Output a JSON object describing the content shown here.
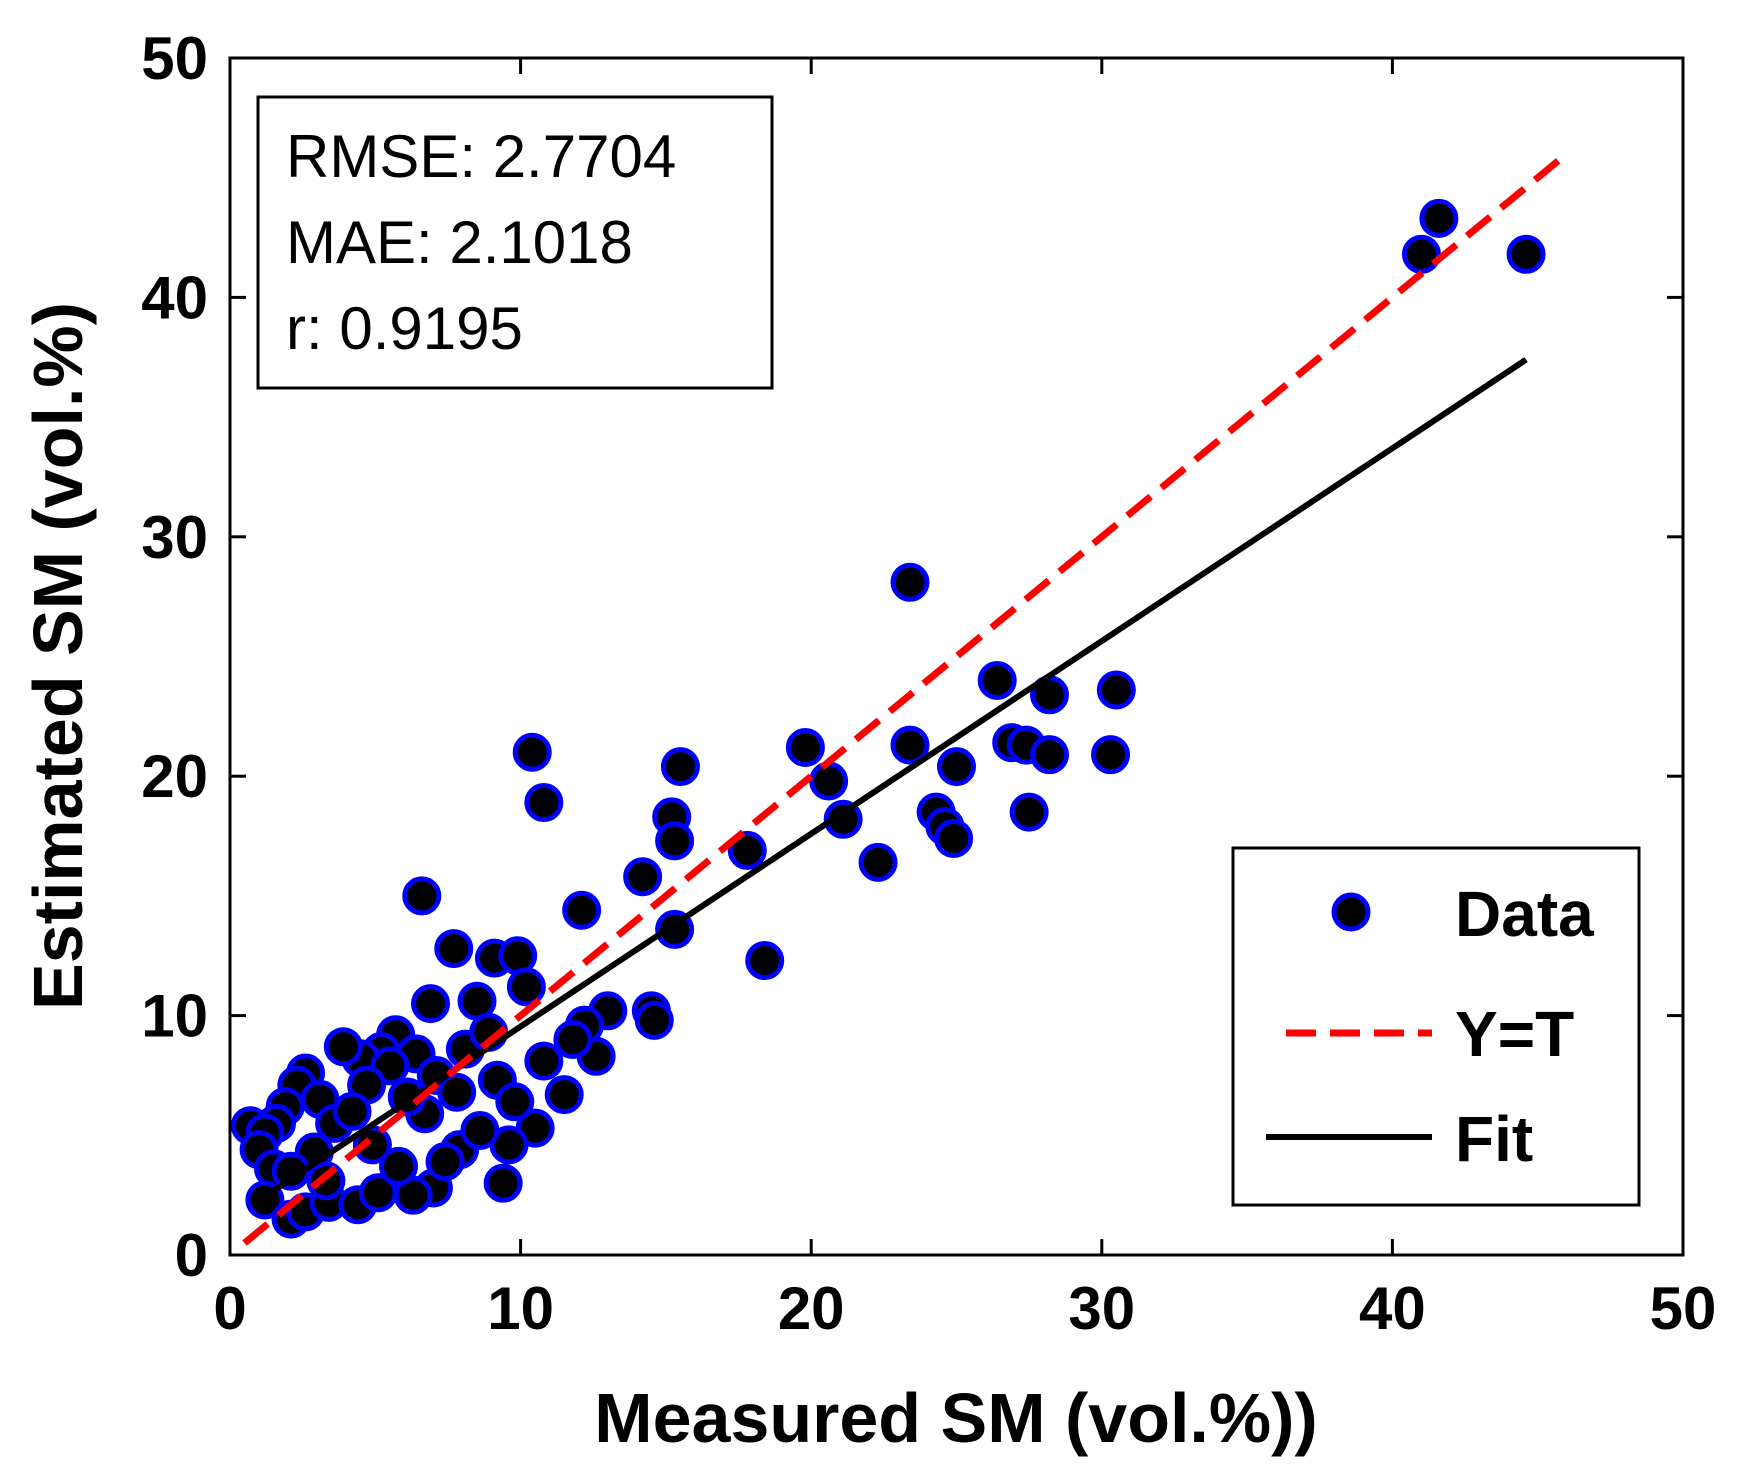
{
  "chart_data": {
    "type": "scatter",
    "xlabel": "Measured SM (vol.%))",
    "ylabel": "Estimated SM (vol.%)",
    "xlim": [
      0,
      50
    ],
    "ylim": [
      0,
      50
    ],
    "xticks": [
      0,
      10,
      20,
      30,
      40,
      50
    ],
    "yticks": [
      0,
      10,
      20,
      30,
      40,
      50
    ],
    "stats": {
      "rmse": "RMSE: 2.7704",
      "mae": "MAE: 2.1018",
      "r": "r: 0.9195"
    },
    "legend": {
      "position": "bottom-right",
      "entries": [
        "Data",
        "Y=T",
        "Fit"
      ]
    },
    "colors": {
      "marker_fill": "#000000",
      "marker_edge": "#0000ff",
      "yt_line": "#ff0000",
      "fit_line": "#000000"
    },
    "yt_line": {
      "x": [
        0.5,
        46
      ],
      "y": [
        0.5,
        46
      ]
    },
    "fit_line": {
      "x": [
        1,
        44.6
      ],
      "y": [
        2.3,
        37.4
      ]
    },
    "series": [
      {
        "name": "Data",
        "points": [
          [
            41.6,
            43.3
          ],
          [
            41.0,
            41.8
          ],
          [
            44.6,
            41.8
          ],
          [
            23.4,
            28.1
          ],
          [
            26.4,
            24.0
          ],
          [
            30.5,
            23.6
          ],
          [
            28.2,
            23.4
          ],
          [
            26.9,
            21.4
          ],
          [
            27.4,
            21.3
          ],
          [
            28.2,
            20.9
          ],
          [
            30.3,
            20.9
          ],
          [
            23.4,
            21.3
          ],
          [
            19.8,
            21.2
          ],
          [
            20.6,
            19.8
          ],
          [
            21.1,
            18.2
          ],
          [
            25.0,
            20.4
          ],
          [
            24.3,
            18.5
          ],
          [
            24.6,
            17.9
          ],
          [
            24.9,
            17.4
          ],
          [
            27.5,
            18.5
          ],
          [
            22.3,
            16.4
          ],
          [
            10.4,
            21.0
          ],
          [
            10.8,
            18.9
          ],
          [
            15.5,
            20.4
          ],
          [
            15.2,
            18.3
          ],
          [
            15.3,
            17.3
          ],
          [
            17.8,
            16.9
          ],
          [
            14.2,
            15.8
          ],
          [
            12.1,
            14.4
          ],
          [
            15.3,
            13.6
          ],
          [
            18.4,
            12.3
          ],
          [
            6.6,
            15.0
          ],
          [
            7.7,
            12.8
          ],
          [
            9.1,
            12.4
          ],
          [
            9.9,
            12.5
          ],
          [
            10.2,
            11.2
          ],
          [
            6.9,
            10.5
          ],
          [
            8.5,
            10.6
          ],
          [
            14.5,
            10.2
          ],
          [
            14.6,
            9.8
          ],
          [
            13.0,
            10.2
          ],
          [
            12.6,
            8.3
          ],
          [
            11.5,
            6.7
          ],
          [
            12.2,
            9.6
          ],
          [
            11.8,
            9.0
          ],
          [
            10.8,
            8.1
          ],
          [
            10.5,
            5.3
          ],
          [
            9.6,
            4.6
          ],
          [
            9.4,
            3.0
          ],
          [
            7.0,
            2.8
          ],
          [
            6.3,
            2.5
          ],
          [
            5.7,
            9.2
          ],
          [
            5.2,
            8.5
          ],
          [
            4.5,
            8.2
          ],
          [
            3.9,
            8.7
          ],
          [
            2.6,
            7.6
          ],
          [
            2.3,
            7.1
          ],
          [
            3.1,
            6.5
          ],
          [
            1.9,
            6.2
          ],
          [
            1.6,
            5.5
          ],
          [
            0.7,
            5.4
          ],
          [
            1.2,
            5.1
          ],
          [
            1.0,
            4.4
          ],
          [
            1.5,
            3.6
          ],
          [
            1.2,
            2.3
          ],
          [
            2.1,
            1.5
          ],
          [
            2.6,
            1.8
          ],
          [
            3.4,
            2.2
          ],
          [
            4.4,
            2.1
          ],
          [
            5.1,
            2.6
          ],
          [
            7.9,
            4.4
          ],
          [
            8.6,
            5.2
          ],
          [
            8.1,
            8.6
          ],
          [
            6.4,
            8.4
          ],
          [
            5.5,
            7.9
          ],
          [
            4.7,
            7.1
          ],
          [
            7.1,
            7.5
          ],
          [
            3.6,
            5.5
          ],
          [
            2.9,
            4.3
          ],
          [
            2.1,
            3.5
          ],
          [
            6.7,
            5.9
          ],
          [
            7.8,
            6.8
          ],
          [
            9.2,
            7.3
          ],
          [
            4.9,
            4.6
          ],
          [
            5.8,
            3.7
          ],
          [
            3.3,
            3.1
          ],
          [
            9.8,
            6.4
          ],
          [
            8.9,
            9.3
          ],
          [
            6.1,
            6.6
          ],
          [
            4.2,
            6.0
          ],
          [
            7.4,
            3.9
          ]
        ]
      }
    ]
  }
}
